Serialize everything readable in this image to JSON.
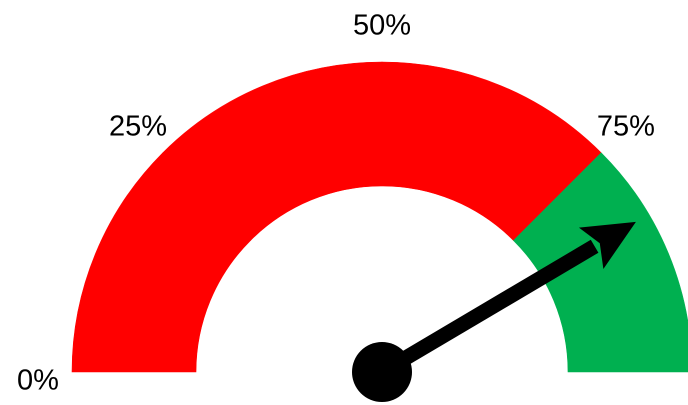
{
  "chart_data": {
    "type": "gauge",
    "range": [
      0,
      100
    ],
    "value": 83,
    "ticks": [
      {
        "value": 0,
        "label": "0%"
      },
      {
        "value": 25,
        "label": "25%"
      },
      {
        "value": 50,
        "label": "50%"
      },
      {
        "value": 75,
        "label": "75%"
      }
    ],
    "bands": [
      {
        "from": 0,
        "to": 25,
        "color": "#ff0000"
      },
      {
        "from": 25,
        "to": 50,
        "color": "#ff0000"
      },
      {
        "from": 50,
        "to": 75,
        "color": "#ff0000"
      },
      {
        "from": 75,
        "to": 100,
        "color": "#00b050"
      }
    ],
    "needle_color": "#000000"
  }
}
